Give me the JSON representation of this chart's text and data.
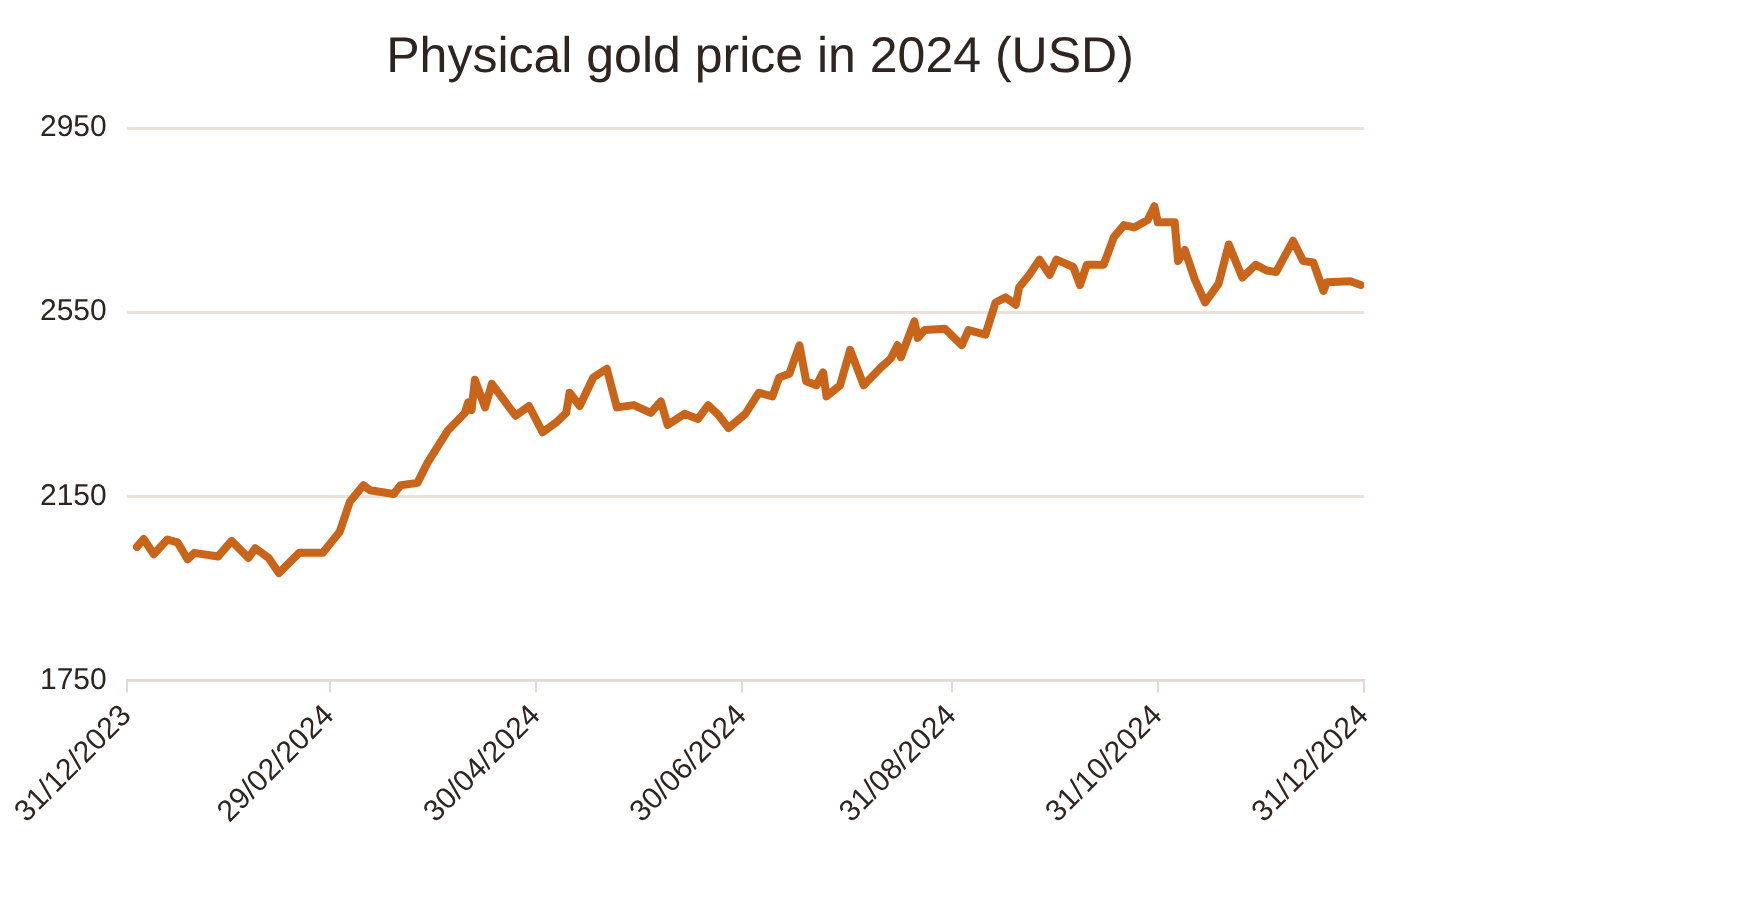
{
  "chart_data": {
    "type": "line",
    "title": "Physical gold price in 2024 (USD)",
    "x": [
      "2024-01-03",
      "2024-01-05",
      "2024-01-08",
      "2024-01-12",
      "2024-01-15",
      "2024-01-18",
      "2024-01-20",
      "2024-01-27",
      "2024-01-31",
      "2024-02-05",
      "2024-02-07",
      "2024-02-11",
      "2024-02-14",
      "2024-02-20",
      "2024-02-27",
      "2024-03-03",
      "2024-03-06",
      "2024-03-10",
      "2024-03-12",
      "2024-03-19",
      "2024-03-21",
      "2024-03-26",
      "2024-03-29",
      "2024-04-04",
      "2024-04-09",
      "2024-04-10",
      "2024-04-11",
      "2024-04-12",
      "2024-04-15",
      "2024-04-17",
      "2024-04-24",
      "2024-04-28",
      "2024-05-02",
      "2024-05-06",
      "2024-05-09",
      "2024-05-10",
      "2024-05-13",
      "2024-05-17",
      "2024-05-21",
      "2024-05-24",
      "2024-05-29",
      "2024-06-03",
      "2024-06-06",
      "2024-06-08",
      "2024-06-13",
      "2024-06-17",
      "2024-06-20",
      "2024-06-23",
      "2024-06-26",
      "2024-07-01",
      "2024-07-05",
      "2024-07-09",
      "2024-07-11",
      "2024-07-14",
      "2024-07-17",
      "2024-07-19",
      "2024-07-22",
      "2024-07-24",
      "2024-07-25",
      "2024-07-29",
      "2024-08-01",
      "2024-08-05",
      "2024-08-10",
      "2024-08-13",
      "2024-08-15",
      "2024-08-16",
      "2024-08-20",
      "2024-08-21",
      "2024-08-23",
      "2024-08-29",
      "2024-09-03",
      "2024-09-05",
      "2024-09-10",
      "2024-09-13",
      "2024-09-16",
      "2024-09-19",
      "2024-09-20",
      "2024-09-23",
      "2024-09-26",
      "2024-09-29",
      "2024-10-01",
      "2024-10-06",
      "2024-10-08",
      "2024-10-10",
      "2024-10-15",
      "2024-10-18",
      "2024-10-21",
      "2024-10-24",
      "2024-10-28",
      "2024-10-30",
      "2024-10-31",
      "2024-11-05",
      "2024-11-06",
      "2024-11-08",
      "2024-11-11",
      "2024-11-14",
      "2024-11-18",
      "2024-11-21",
      "2024-11-25",
      "2024-11-29",
      "2024-12-02",
      "2024-12-05",
      "2024-12-10",
      "2024-12-13",
      "2024-12-16",
      "2024-12-19",
      "2024-12-20",
      "2024-12-27",
      "2024-12-30"
    ],
    "series": [
      {
        "color": "#c8651b",
        "values": [
          2040,
          2057,
          2024,
          2056,
          2050,
          2013,
          2027,
          2019,
          2053,
          2016,
          2037,
          2016,
          1983,
          2027,
          2027,
          2073,
          2138,
          2174,
          2163,
          2155,
          2174,
          2179,
          2223,
          2293,
          2331,
          2354,
          2337,
          2403,
          2343,
          2394,
          2325,
          2346,
          2289,
          2310,
          2331,
          2375,
          2346,
          2408,
          2427,
          2343,
          2348,
          2331,
          2356,
          2305,
          2329,
          2318,
          2348,
          2327,
          2298,
          2329,
          2375,
          2367,
          2408,
          2416,
          2478,
          2400,
          2391,
          2419,
          2367,
          2391,
          2468,
          2391,
          2429,
          2449,
          2478,
          2452,
          2530,
          2494,
          2511,
          2514,
          2478,
          2511,
          2501,
          2571,
          2582,
          2566,
          2604,
          2631,
          2664,
          2631,
          2664,
          2648,
          2609,
          2653,
          2653,
          2713,
          2739,
          2734,
          2750,
          2780,
          2745,
          2745,
          2661,
          2685,
          2620,
          2571,
          2612,
          2697,
          2625,
          2653,
          2641,
          2637,
          2705,
          2661,
          2658,
          2596,
          2615,
          2617,
          2609
        ]
      }
    ],
    "xlim": [
      "2023-12-31",
      "2024-12-31"
    ],
    "xticks": [
      {
        "value": "2023-12-31",
        "label": "31/12/2023"
      },
      {
        "value": "2024-02-29",
        "label": "29/02/2024"
      },
      {
        "value": "2024-04-30",
        "label": "30/04/2024"
      },
      {
        "value": "2024-06-30",
        "label": "30/06/2024"
      },
      {
        "value": "2024-08-31",
        "label": "31/08/2024"
      },
      {
        "value": "2024-10-31",
        "label": "31/10/2024"
      },
      {
        "value": "2024-12-31",
        "label": "31/12/2024"
      }
    ],
    "ylim": [
      1750,
      2950
    ],
    "yticks": [
      1750,
      2150,
      2550,
      2950
    ],
    "grid": "y",
    "legend": false,
    "marker": "none",
    "line_style": "solid"
  }
}
